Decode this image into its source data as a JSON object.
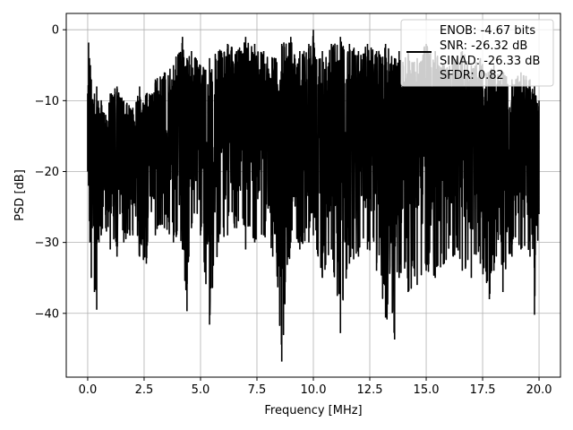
{
  "chart_data": {
    "type": "line",
    "title": "",
    "xlabel": "Frequency [MHz]",
    "ylabel": "PSD [dB]",
    "xlim": [
      -0.95,
      20.95
    ],
    "ylim": [
      -49.0,
      2.3
    ],
    "xticks": [
      0.0,
      2.5,
      5.0,
      7.5,
      10.0,
      12.5,
      15.0,
      17.5,
      20.0
    ],
    "xtick_labels": [
      "0.0",
      "2.5",
      "5.0",
      "7.5",
      "10.0",
      "12.5",
      "15.0",
      "17.5",
      "20.0"
    ],
    "yticks": [
      0,
      -10,
      -20,
      -30,
      -40
    ],
    "ytick_labels": [
      "0",
      "−10",
      "−20",
      "−30",
      "−40"
    ],
    "grid": true,
    "line_color": "#000000",
    "legend": {
      "placement": "upper-right",
      "entries": [
        "ENOB: -4.67 bits",
        "SNR: -26.32 dB",
        "SINAD: -26.33 dB",
        "SFDR: 0.82"
      ]
    },
    "series": [
      {
        "x": [
          0.0,
          0.04,
          0.08,
          0.1,
          0.12,
          0.16,
          0.2,
          0.3,
          0.4,
          0.5,
          0.6,
          0.8,
          1.0,
          1.3,
          1.6,
          2.0,
          2.3,
          2.6,
          3.0,
          3.4,
          3.8,
          4.2,
          4.4,
          4.6,
          5.0,
          5.4,
          5.8,
          6.2,
          6.6,
          7.0,
          7.4,
          7.8,
          8.2,
          8.6,
          9.0,
          9.4,
          9.8,
          10.0,
          10.4,
          10.8,
          11.2,
          11.6,
          12.0,
          12.4,
          12.8,
          13.2,
          13.6,
          13.8,
          14.2,
          14.6,
          15.0,
          15.4,
          15.8,
          16.2,
          16.6,
          17.0,
          17.4,
          17.8,
          18.0,
          18.4,
          18.8,
          19.2,
          19.6,
          19.8,
          20.0
        ],
        "y_peak": [
          -9,
          -1.8,
          -4,
          -6,
          -5,
          -7,
          -10,
          -9,
          -8,
          -11,
          -10,
          -12,
          -9,
          -8,
          -10,
          -11,
          -8,
          -9,
          -7,
          -6,
          -5,
          -1,
          -4,
          -3,
          -5,
          -4,
          -3,
          -2,
          -3,
          -1,
          -2,
          -3,
          -4,
          -2,
          -1,
          -3,
          -2,
          0,
          -3,
          -2,
          -1,
          -2,
          -3,
          -2,
          -3,
          -2,
          -4,
          -3,
          -3,
          -4,
          -2,
          -3,
          -5,
          -4,
          -3,
          -5,
          -4,
          -6,
          -5,
          -6,
          -7,
          -6,
          -7,
          -8,
          -10
        ],
        "y_trough": [
          -20,
          -22,
          -27,
          -30,
          -27,
          -35,
          -28,
          -37,
          -39.5,
          -30,
          -29,
          -28,
          -31,
          -32,
          -30,
          -29,
          -32,
          -33,
          -29,
          -28,
          -30,
          -31,
          -39.7,
          -28,
          -29,
          -41.6,
          -30,
          -29,
          -28,
          -31,
          -30,
          -29,
          -32,
          -46.8,
          -30,
          -31,
          -30,
          -29,
          -35,
          -31,
          -42.8,
          -33,
          -32,
          -31,
          -34,
          -40.6,
          -43.7,
          -35,
          -37,
          -36,
          -34,
          -35,
          -33,
          -32,
          -34,
          -35,
          -33,
          -38,
          -34,
          -37,
          -32,
          -31,
          -32,
          -40.2,
          -26
        ]
      }
    ]
  }
}
